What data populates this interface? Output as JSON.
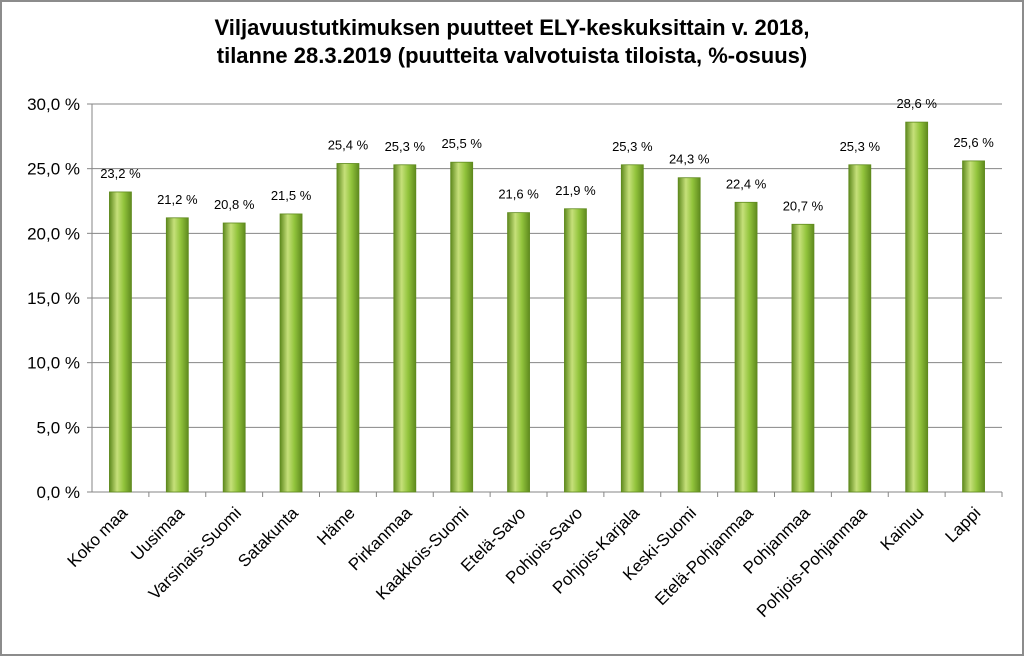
{
  "chart_data": {
    "type": "bar",
    "title_lines": [
      "Viljavuustutkimuksen puutteet ELY-keskuksittain v. 2018,",
      "tilanne 28.3.2019 (puutteita valvotuista tiloista, %-osuus)"
    ],
    "xlabel": "",
    "ylabel": "",
    "ylim": [
      0,
      30
    ],
    "yticks": [
      0,
      5,
      10,
      15,
      20,
      25,
      30
    ],
    "ytick_labels": [
      "0,0 %",
      "5,0 %",
      "10,0 %",
      "15,0 %",
      "20,0 %",
      "25,0 %",
      "30,0 %"
    ],
    "grid": true,
    "legend": "none",
    "categories": [
      "Koko maa",
      "Uusimaa",
      "Varsinais-Suomi",
      "Satakunta",
      "Häme",
      "Pirkanmaa",
      "Kaakkois-Suomi",
      "Etelä-Savo",
      "Pohjois-Savo",
      "Pohjois-Karjala",
      "Keski-Suomi",
      "Etelä-Pohjanmaa",
      "Pohjanmaa",
      "Pohjois-Pohjanmaa",
      "Kainuu",
      "Lappi"
    ],
    "values": [
      23.2,
      21.2,
      20.8,
      21.5,
      25.4,
      25.3,
      25.5,
      21.6,
      21.9,
      25.3,
      24.3,
      22.4,
      20.7,
      25.3,
      28.6,
      25.6
    ],
    "data_labels": [
      "23,2 %",
      "21,2 %",
      "20,8 %",
      "21,5 %",
      "25,4 %",
      "25,3 %",
      "25,5 %",
      "21,6 %",
      "21,9 %",
      "25,3 %",
      "24,3 %",
      "22,4 %",
      "20,7 %",
      "25,3 %",
      "28,6 %",
      "25,6 %"
    ],
    "colors": {
      "bar_light": "#c6e07a",
      "bar_mid": "#92c43c",
      "bar_dark": "#5f8a1e",
      "grid": "#868686"
    }
  }
}
